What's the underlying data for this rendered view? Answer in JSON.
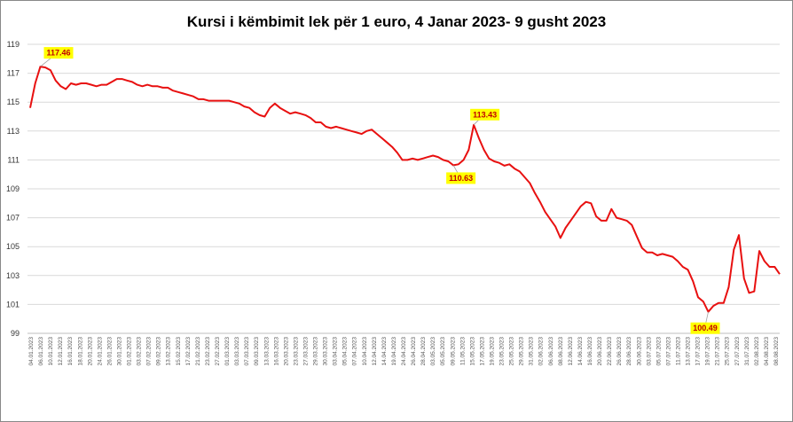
{
  "chart_data": {
    "type": "line",
    "title": "Kursi i këmbimit lek për 1 euro, 4 Janar 2023- 9 gusht 2023",
    "ylim": [
      99,
      119
    ],
    "y_ticks": [
      "99",
      "101",
      "103",
      "105",
      "107",
      "109",
      "111",
      "113",
      "115",
      "117",
      "119"
    ],
    "grid": "horizontal",
    "legend": "none",
    "x_tick_labels": [
      "04.01.2023",
      "06.01.2023",
      "10.01.2023",
      "12.01.2023",
      "16.01.2023",
      "18.01.2023",
      "20.01.2023",
      "24.01.2023",
      "26.01.2023",
      "30.01.2023",
      "01.02.2023",
      "03.02.2023",
      "07.02.2023",
      "09.02.2023",
      "13.02.2023",
      "15.02.2023",
      "17.02.2023",
      "21.02.2023",
      "23.02.2023",
      "27.02.2023",
      "01.03.2023",
      "03.03.2023",
      "07.03.2023",
      "09.03.2023",
      "13.03.2023",
      "16.03.2023",
      "20.03.2023",
      "23.03.2023",
      "27.03.2023",
      "29.03.2023",
      "30.03.2023",
      "03.04.2023",
      "05.04.2023",
      "07.04.2023",
      "10.04.2023",
      "12.04.2023",
      "14.04.2023",
      "19.04.2023",
      "24.04.2023",
      "26.04.2023",
      "28.04.2023",
      "03.05.2023",
      "05.05.2023",
      "09.05.2023",
      "11.05.2023",
      "15.05.2023",
      "17.05.2023",
      "19.05.2023",
      "23.05.2023",
      "25.05.2023",
      "29.05.2023",
      "31.05.2023",
      "02.06.2023",
      "06.06.2023",
      "08.06.2023",
      "12.06.2023",
      "14.06.2023",
      "16.06.2023",
      "20.06.2023",
      "22.06.2023",
      "26.06.2023",
      "28.06.2023",
      "30.06.2023",
      "03.07.2023",
      "05.07.2023",
      "07.07.2023",
      "11.07.2023",
      "13.07.2023",
      "17.07.2023",
      "19.07.2023",
      "21.07.2023",
      "25.07.2023",
      "27.07.2023",
      "31.07.2023",
      "02.08.2023",
      "04.08.2023",
      "08.08.2023"
    ],
    "series": [
      {
        "color": "#e81010",
        "values": [
          114.6,
          116.3,
          117.46,
          117.4,
          117.2,
          116.5,
          116.1,
          115.9,
          116.3,
          116.2,
          116.3,
          116.3,
          116.2,
          116.1,
          116.2,
          116.2,
          116.4,
          116.6,
          116.6,
          116.5,
          116.4,
          116.2,
          116.1,
          116.2,
          116.1,
          116.1,
          116.0,
          116.0,
          115.8,
          115.7,
          115.6,
          115.5,
          115.4,
          115.2,
          115.2,
          115.1,
          115.1,
          115.1,
          115.1,
          115.1,
          115.0,
          114.9,
          114.7,
          114.6,
          114.3,
          114.1,
          114.0,
          114.6,
          114.9,
          114.6,
          114.4,
          114.2,
          114.3,
          114.2,
          114.1,
          113.9,
          113.6,
          113.6,
          113.3,
          113.2,
          113.3,
          113.2,
          113.1,
          113.0,
          112.9,
          112.8,
          113.0,
          113.1,
          112.8,
          112.5,
          112.2,
          111.9,
          111.5,
          111.0,
          111.0,
          111.1,
          111.0,
          111.1,
          111.2,
          111.3,
          111.2,
          111.0,
          110.9,
          110.63,
          110.7,
          111.0,
          111.7,
          113.43,
          112.5,
          111.7,
          111.1,
          110.9,
          110.8,
          110.6,
          110.7,
          110.4,
          110.2,
          109.8,
          109.4,
          108.7,
          108.1,
          107.4,
          106.9,
          106.4,
          105.6,
          106.3,
          106.8,
          107.3,
          107.8,
          108.1,
          108.0,
          107.1,
          106.8,
          106.8,
          107.6,
          107.0,
          106.9,
          106.8,
          106.5,
          105.7,
          104.9,
          104.6,
          104.6,
          104.4,
          104.5,
          104.4,
          104.3,
          104.0,
          103.6,
          103.4,
          102.6,
          101.5,
          101.2,
          100.49,
          100.9,
          101.1,
          101.1,
          102.2,
          104.8,
          105.8,
          102.8,
          101.8,
          101.9,
          104.7,
          104.0,
          103.6,
          103.6,
          103.1
        ]
      }
    ],
    "annotations": [
      {
        "text": "117.46",
        "index": 2
      },
      {
        "text": "113.43",
        "index": 87
      },
      {
        "text": "110.63",
        "index": 83
      },
      {
        "text": "100.49",
        "index": 133
      }
    ]
  }
}
